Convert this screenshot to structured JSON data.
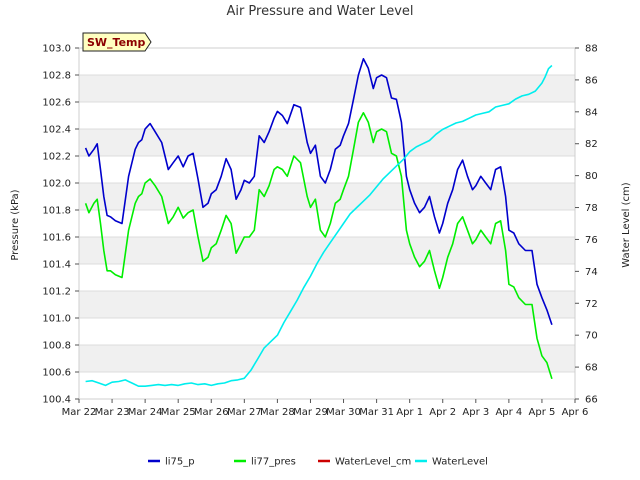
{
  "chart_data": {
    "type": "line",
    "title": "Air Pressure and Water Level",
    "badge": "SW_Temp",
    "xlabel": "",
    "ylabel": "Pressure (kPa)",
    "ylabel_right": "Water Level (cm)",
    "grid": "horizontal bands",
    "legend_position": "bottom-center",
    "x_ticks": [
      "Mar 22",
      "Mar 23",
      "Mar 24",
      "Mar 25",
      "Mar 26",
      "Mar 27",
      "Mar 28",
      "Mar 29",
      "Mar 30",
      "Mar 31",
      "Apr 1",
      "Apr 2",
      "Apr 3",
      "Apr 4",
      "Apr 5",
      "Apr 6"
    ],
    "xlim": [
      0,
      15
    ],
    "ylim": [
      100.4,
      103.0
    ],
    "y_ticks": [
      "100.4",
      "100.6",
      "100.8",
      "101.0",
      "101.2",
      "101.4",
      "101.6",
      "101.8",
      "102.0",
      "102.2",
      "102.4",
      "102.6",
      "102.8",
      "103.0"
    ],
    "ylim_right": [
      66,
      88
    ],
    "y_ticks_right": [
      "66",
      "68",
      "70",
      "72",
      "74",
      "76",
      "78",
      "80",
      "82",
      "84",
      "86",
      "88"
    ],
    "series": [
      {
        "name": "li75_p",
        "axis": "left",
        "color": "#0000cc",
        "x": [
          0.2,
          0.3,
          0.45,
          0.55,
          0.65,
          0.75,
          0.85,
          0.95,
          1.1,
          1.3,
          1.5,
          1.7,
          1.8,
          1.9,
          2.0,
          2.15,
          2.3,
          2.5,
          2.7,
          2.85,
          3.0,
          3.15,
          3.3,
          3.45,
          3.6,
          3.75,
          3.9,
          4.0,
          4.15,
          4.3,
          4.45,
          4.6,
          4.75,
          4.9,
          5.0,
          5.15,
          5.3,
          5.45,
          5.6,
          5.75,
          5.9,
          6.0,
          6.15,
          6.3,
          6.5,
          6.7,
          6.9,
          7.0,
          7.15,
          7.3,
          7.45,
          7.6,
          7.75,
          7.9,
          8.0,
          8.15,
          8.3,
          8.45,
          8.6,
          8.75,
          8.9,
          9.0,
          9.15,
          9.3,
          9.45,
          9.6,
          9.75,
          9.9,
          10.0,
          10.15,
          10.3,
          10.45,
          10.6,
          10.75,
          10.9,
          11.0,
          11.15,
          11.3,
          11.45,
          11.6,
          11.75,
          11.9,
          12.0,
          12.15,
          12.3,
          12.45,
          12.6,
          12.75,
          12.9,
          13.0,
          13.15,
          13.3,
          13.5,
          13.7,
          13.85,
          14.0,
          14.15,
          14.3
        ],
        "values": [
          102.26,
          102.2,
          102.25,
          102.29,
          102.1,
          101.9,
          101.76,
          101.75,
          101.72,
          101.7,
          102.05,
          102.25,
          102.3,
          102.32,
          102.4,
          102.44,
          102.38,
          102.3,
          102.1,
          102.15,
          102.2,
          102.12,
          102.2,
          102.22,
          102.03,
          101.82,
          101.85,
          101.92,
          101.95,
          102.05,
          102.18,
          102.1,
          101.88,
          101.95,
          102.02,
          102.0,
          102.05,
          102.35,
          102.3,
          102.38,
          102.48,
          102.53,
          102.5,
          102.44,
          102.58,
          102.56,
          102.3,
          102.22,
          102.28,
          102.05,
          102.0,
          102.1,
          102.25,
          102.28,
          102.35,
          102.44,
          102.62,
          102.8,
          102.92,
          102.85,
          102.7,
          102.78,
          102.8,
          102.78,
          102.63,
          102.62,
          102.45,
          102.05,
          101.95,
          101.85,
          101.78,
          101.82,
          101.9,
          101.75,
          101.63,
          101.7,
          101.85,
          101.95,
          102.1,
          102.17,
          102.05,
          101.95,
          101.98,
          102.05,
          102.0,
          101.95,
          102.1,
          102.12,
          101.9,
          101.65,
          101.63,
          101.55,
          101.5,
          101.5,
          101.25,
          101.15,
          101.06,
          100.95
        ]
      },
      {
        "name": "li77_pres",
        "axis": "left",
        "color": "#00ee00",
        "x": [
          0.2,
          0.3,
          0.45,
          0.55,
          0.65,
          0.75,
          0.85,
          0.95,
          1.1,
          1.3,
          1.5,
          1.7,
          1.8,
          1.9,
          2.0,
          2.15,
          2.3,
          2.5,
          2.7,
          2.85,
          3.0,
          3.15,
          3.3,
          3.45,
          3.6,
          3.75,
          3.9,
          4.0,
          4.15,
          4.3,
          4.45,
          4.6,
          4.75,
          4.9,
          5.0,
          5.15,
          5.3,
          5.45,
          5.6,
          5.75,
          5.9,
          6.0,
          6.15,
          6.3,
          6.5,
          6.7,
          6.9,
          7.0,
          7.15,
          7.3,
          7.45,
          7.6,
          7.75,
          7.9,
          8.0,
          8.15,
          8.3,
          8.45,
          8.6,
          8.75,
          8.9,
          9.0,
          9.15,
          9.3,
          9.45,
          9.6,
          9.75,
          9.9,
          10.0,
          10.15,
          10.3,
          10.45,
          10.6,
          10.75,
          10.9,
          11.0,
          11.15,
          11.3,
          11.45,
          11.6,
          11.75,
          11.9,
          12.0,
          12.15,
          12.3,
          12.45,
          12.6,
          12.75,
          12.9,
          13.0,
          13.15,
          13.3,
          13.5,
          13.7,
          13.85,
          14.0,
          14.15,
          14.3
        ],
        "values": [
          101.85,
          101.78,
          101.85,
          101.88,
          101.7,
          101.5,
          101.35,
          101.35,
          101.32,
          101.3,
          101.65,
          101.85,
          101.9,
          101.92,
          102.0,
          102.03,
          101.98,
          101.9,
          101.7,
          101.75,
          101.82,
          101.74,
          101.78,
          101.8,
          101.6,
          101.42,
          101.45,
          101.52,
          101.55,
          101.65,
          101.76,
          101.7,
          101.48,
          101.55,
          101.6,
          101.6,
          101.65,
          101.95,
          101.9,
          101.98,
          102.1,
          102.12,
          102.1,
          102.05,
          102.2,
          102.15,
          101.9,
          101.82,
          101.88,
          101.65,
          101.6,
          101.7,
          101.85,
          101.88,
          101.95,
          102.05,
          102.25,
          102.45,
          102.52,
          102.45,
          102.3,
          102.38,
          102.4,
          102.38,
          102.22,
          102.2,
          102.05,
          101.65,
          101.55,
          101.45,
          101.38,
          101.42,
          101.5,
          101.35,
          101.22,
          101.3,
          101.45,
          101.55,
          101.7,
          101.75,
          101.65,
          101.55,
          101.58,
          101.65,
          101.6,
          101.55,
          101.7,
          101.72,
          101.5,
          101.25,
          101.23,
          101.15,
          101.1,
          101.1,
          100.85,
          100.72,
          100.67,
          100.55
        ]
      },
      {
        "name": "WaterLevel_cm",
        "axis": "right",
        "color": "#cc0000",
        "x": [],
        "values": []
      },
      {
        "name": "WaterLevel",
        "axis": "right",
        "color": "#00eeee",
        "x": [
          0.2,
          0.4,
          0.6,
          0.8,
          1.0,
          1.2,
          1.4,
          1.6,
          1.8,
          2.0,
          2.2,
          2.4,
          2.6,
          2.8,
          3.0,
          3.2,
          3.4,
          3.6,
          3.8,
          4.0,
          4.2,
          4.4,
          4.6,
          4.8,
          5.0,
          5.2,
          5.4,
          5.6,
          5.8,
          6.0,
          6.2,
          6.4,
          6.6,
          6.8,
          7.0,
          7.2,
          7.4,
          7.6,
          7.8,
          8.0,
          8.2,
          8.4,
          8.6,
          8.8,
          9.0,
          9.2,
          9.4,
          9.6,
          9.8,
          10.0,
          10.2,
          10.4,
          10.6,
          10.8,
          11.0,
          11.2,
          11.4,
          11.6,
          11.8,
          12.0,
          12.2,
          12.4,
          12.6,
          12.8,
          13.0,
          13.2,
          13.4,
          13.6,
          13.8,
          14.0,
          14.1,
          14.2,
          14.3
        ],
        "values": [
          67.1,
          67.15,
          67.0,
          66.85,
          67.05,
          67.1,
          67.2,
          67.0,
          66.8,
          66.8,
          66.85,
          66.9,
          66.85,
          66.9,
          66.85,
          66.95,
          67.0,
          66.9,
          66.95,
          66.85,
          66.95,
          67.0,
          67.15,
          67.2,
          67.3,
          67.8,
          68.5,
          69.2,
          69.6,
          70.0,
          70.8,
          71.5,
          72.2,
          73.0,
          73.7,
          74.5,
          75.2,
          75.8,
          76.4,
          77.0,
          77.6,
          78.0,
          78.4,
          78.8,
          79.3,
          79.8,
          80.2,
          80.6,
          81.0,
          81.5,
          81.8,
          82.0,
          82.2,
          82.6,
          82.9,
          83.1,
          83.3,
          83.4,
          83.6,
          83.8,
          83.9,
          84.0,
          84.3,
          84.4,
          84.5,
          84.8,
          85.0,
          85.1,
          85.3,
          85.8,
          86.2,
          86.7,
          86.9
        ]
      }
    ]
  }
}
